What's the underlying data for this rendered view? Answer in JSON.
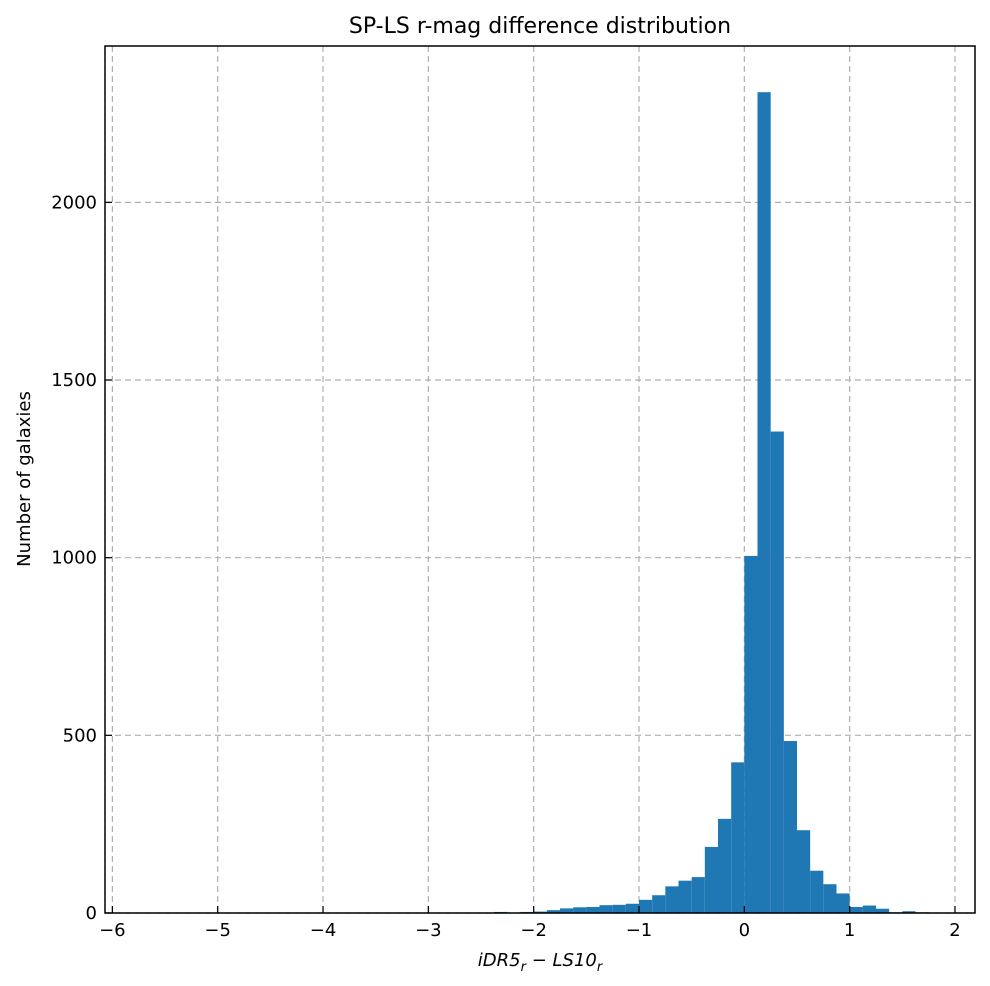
{
  "chart_data": {
    "type": "bar",
    "title": "SP-LS r-mag difference distribution",
    "xlabel": {
      "main": "iDR5",
      "sub1": "r",
      "mid": " − LS10",
      "sub2": "r"
    },
    "ylabel": "Number of galaxies",
    "xlim": [
      -6.07,
      2.19
    ],
    "ylim": [
      0,
      2440
    ],
    "xticks": [
      -6,
      -5,
      -4,
      -3,
      -2,
      -1,
      0,
      1,
      2
    ],
    "xtick_labels": [
      "−6",
      "−5",
      "−4",
      "−3",
      "−2",
      "−1",
      "0",
      "1",
      "2"
    ],
    "yticks": [
      0,
      500,
      1000,
      1500,
      2000
    ],
    "ytick_labels": [
      "0",
      "500",
      "1000",
      "1500",
      "2000"
    ],
    "grid": true,
    "bin_width": 0.125,
    "bins": [
      {
        "x0": -2.375,
        "x1": -2.25,
        "count": 3
      },
      {
        "x0": -2.125,
        "x1": -2.0,
        "count": 3
      },
      {
        "x0": -2.0,
        "x1": -1.875,
        "count": 4
      },
      {
        "x0": -1.875,
        "x1": -1.75,
        "count": 8
      },
      {
        "x0": -1.75,
        "x1": -1.625,
        "count": 13
      },
      {
        "x0": -1.625,
        "x1": -1.5,
        "count": 16
      },
      {
        "x0": -1.5,
        "x1": -1.375,
        "count": 17
      },
      {
        "x0": -1.375,
        "x1": -1.25,
        "count": 22
      },
      {
        "x0": -1.25,
        "x1": -1.125,
        "count": 23
      },
      {
        "x0": -1.125,
        "x1": -1.0,
        "count": 26
      },
      {
        "x0": -1.0,
        "x1": -0.875,
        "count": 37
      },
      {
        "x0": -0.875,
        "x1": -0.75,
        "count": 50
      },
      {
        "x0": -0.75,
        "x1": -0.625,
        "count": 75
      },
      {
        "x0": -0.625,
        "x1": -0.5,
        "count": 91
      },
      {
        "x0": -0.5,
        "x1": -0.375,
        "count": 101
      },
      {
        "x0": -0.375,
        "x1": -0.25,
        "count": 186
      },
      {
        "x0": -0.25,
        "x1": -0.125,
        "count": 265
      },
      {
        "x0": -0.125,
        "x1": 0.0,
        "count": 424
      },
      {
        "x0": 0.0,
        "x1": 0.125,
        "count": 1005
      },
      {
        "x0": 0.125,
        "x1": 0.25,
        "count": 2310
      },
      {
        "x0": 0.25,
        "x1": 0.375,
        "count": 1355
      },
      {
        "x0": 0.375,
        "x1": 0.5,
        "count": 484
      },
      {
        "x0": 0.5,
        "x1": 0.625,
        "count": 233
      },
      {
        "x0": 0.625,
        "x1": 0.75,
        "count": 119
      },
      {
        "x0": 0.75,
        "x1": 0.875,
        "count": 81
      },
      {
        "x0": 0.875,
        "x1": 1.0,
        "count": 55
      },
      {
        "x0": 1.0,
        "x1": 1.125,
        "count": 17
      },
      {
        "x0": 1.125,
        "x1": 1.25,
        "count": 21
      },
      {
        "x0": 1.25,
        "x1": 1.375,
        "count": 12
      },
      {
        "x0": 1.375,
        "x1": 1.5,
        "count": 2
      },
      {
        "x0": 1.5,
        "x1": 1.625,
        "count": 5
      },
      {
        "x0": 1.625,
        "x1": 1.75,
        "count": 2
      }
    ],
    "colors": {
      "bar": "#1f77b4",
      "grid": "#b0b0b0",
      "axes": "#000000"
    }
  }
}
